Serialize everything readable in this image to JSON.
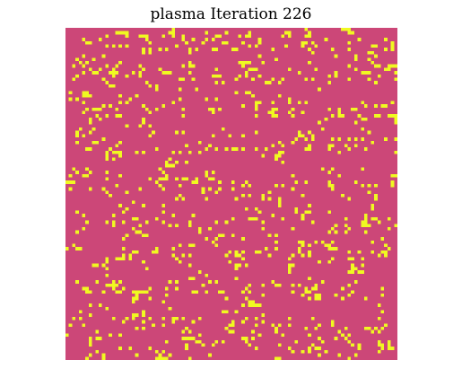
{
  "figure": {
    "title": "plasma Iteration 226"
  },
  "grid": {
    "colormap": "plasma",
    "iteration": 226,
    "dead_color": "#cc4778",
    "alive_color": "#f0f921"
  }
}
